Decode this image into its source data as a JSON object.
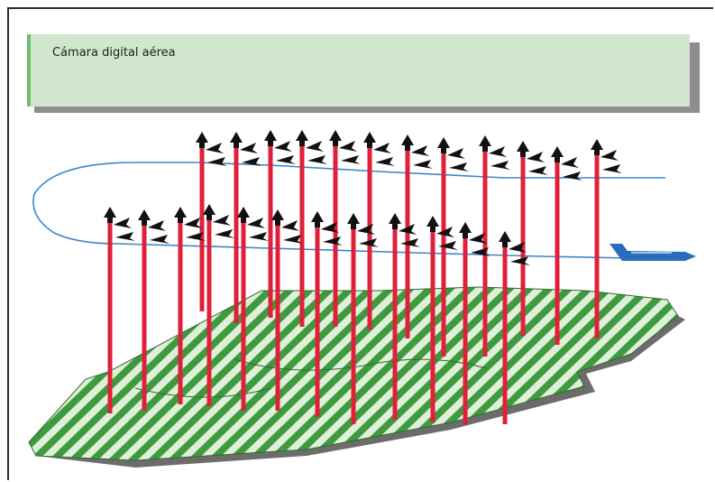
{
  "banner": {
    "title": "Cámara digital aérea"
  },
  "colors": {
    "ground_green": "#3f9a3f",
    "ground_light": "#dff0d8",
    "ray_red": "#e0203a",
    "flight_path": "#3b86c8",
    "aircraft": "#2a6db8",
    "marker_black": "#111111"
  },
  "icons": [
    "aircraft-icon",
    "camera-arrow-icon"
  ]
}
